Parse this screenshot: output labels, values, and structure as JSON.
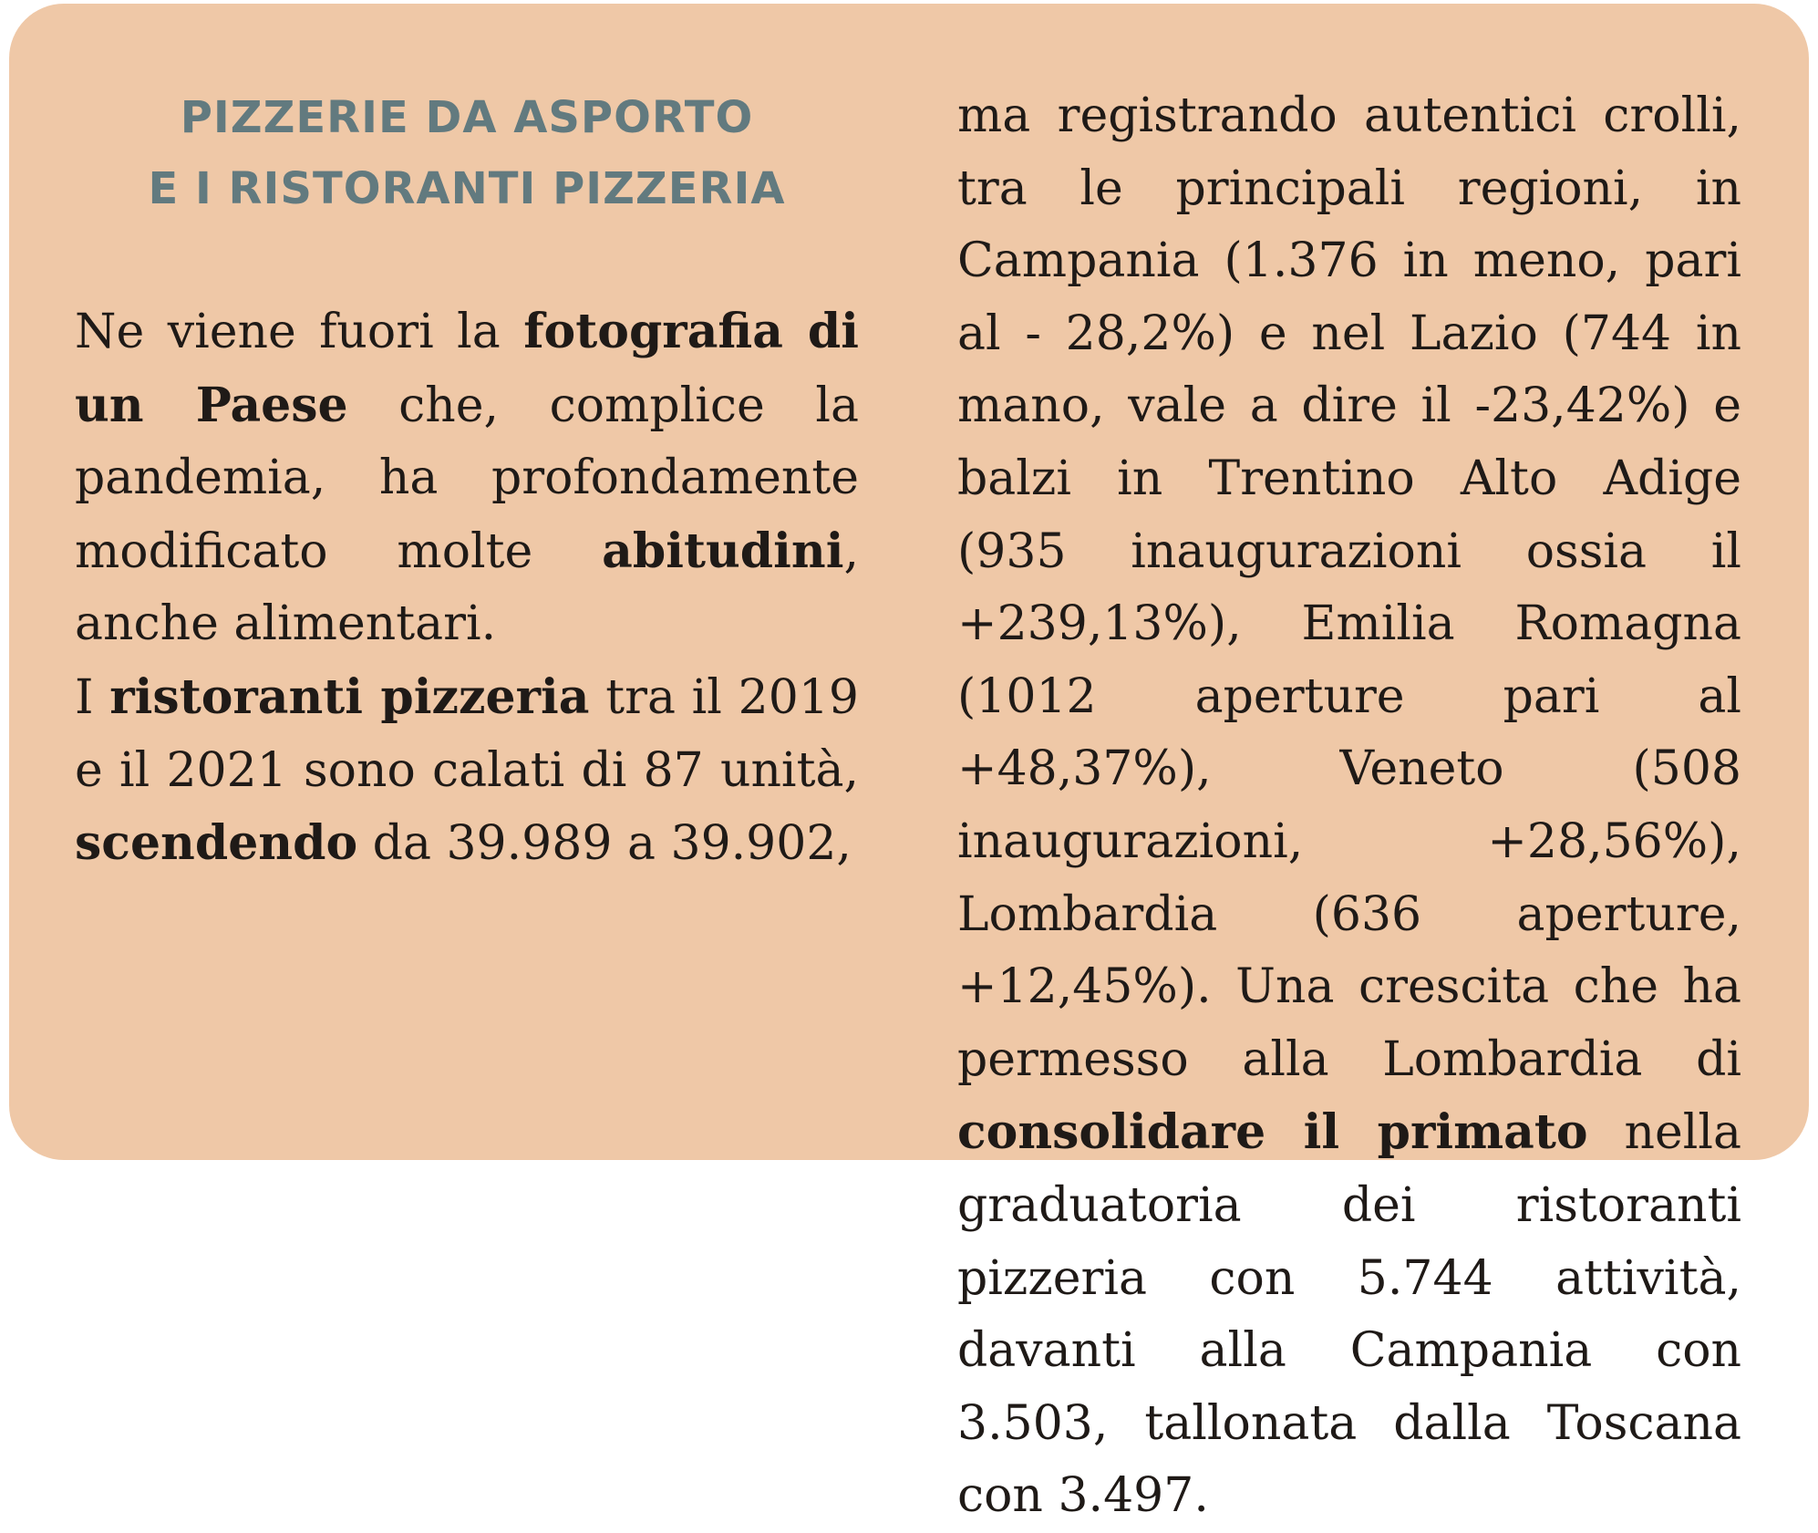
{
  "box": {
    "title_line1": "PIZZERIE DA ASPORTO",
    "title_line2": "E I RISTORANTI PIZZERIA"
  },
  "paragraphs": {
    "p1": {
      "t1": "Ne viene fuori la ",
      "b1": "fotografia di un Paese",
      "t2": " che, complice la pandemia, ha profondamente modificato molte ",
      "b2": "abitudini",
      "t3": ", anche alimentari."
    },
    "p2": {
      "t1": "I ",
      "b1": "ristoranti pizzeria",
      "t2": " tra il 2019 e il 2021 sono calati di 87 unità, ",
      "b2": "scendendo",
      "t3": " da 39.989 a 39.902, ma registrando autentici crolli, tra le principali regioni, in Campania (1.376 in meno, pari al - 28,2%) e nel Lazio (744 in mano, vale a dire il -23,42%) e balzi in Trentino Alto Adige (935 inaugurazioni ossia il +239,13%), Emilia Romagna (1012 aperture pari al +48,37%), Veneto (508 inaugurazioni, +28,56%), Lombardia (636 aperture, +12,45%). Una crescita che ha permesso alla Lombardia di ",
      "b3": "consolidare il primato",
      "t4": " nella graduatoria dei ristoranti pizzeria con 5.744 attività, davanti alla Campania con 3.503, tallonata dalla Toscana con 3.497."
    }
  },
  "colors": {
    "background": "#efc8a7",
    "title": "#627a7f",
    "text": "#1f1a17"
  }
}
